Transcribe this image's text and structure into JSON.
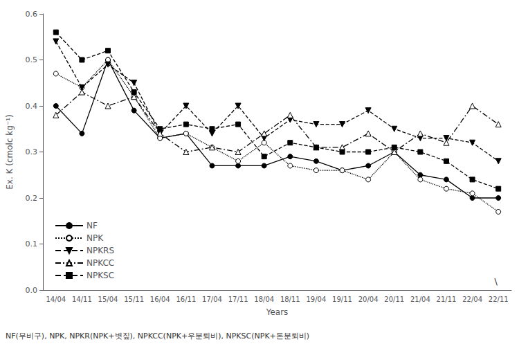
{
  "chart_data": {
    "type": "line",
    "xlabel": "Years",
    "ylabel": "Ex. K (cmolc kg⁻¹)",
    "categories": [
      "14/04",
      "14/11",
      "15/04",
      "15/11",
      "16/04",
      "16/11",
      "17/04",
      "17/11",
      "18/04",
      "18/11",
      "19/04",
      "19/11",
      "20/04",
      "20/11",
      "21/04",
      "21/11",
      "22/04",
      "22/11"
    ],
    "series": [
      {
        "name": "NF",
        "color": "#000000",
        "line_style": "solid",
        "marker": "circle",
        "values": [
          0.4,
          0.34,
          0.5,
          0.39,
          0.33,
          0.34,
          0.27,
          0.27,
          0.27,
          0.29,
          0.28,
          0.26,
          0.27,
          0.3,
          0.25,
          0.24,
          0.2,
          0.2
        ]
      },
      {
        "name": "NPK",
        "color": "#000000",
        "line_style": "dotted",
        "marker": "circle_open",
        "values": [
          0.47,
          0.44,
          0.5,
          0.42,
          0.33,
          0.34,
          0.31,
          0.28,
          0.32,
          0.27,
          0.26,
          0.26,
          0.24,
          0.3,
          0.24,
          0.22,
          0.21,
          0.17
        ]
      },
      {
        "name": "NPKRS",
        "color": "#000000",
        "line_style": "dashed",
        "marker": "triangle_down",
        "values": [
          0.54,
          0.44,
          0.49,
          0.45,
          0.34,
          0.4,
          0.34,
          0.4,
          0.33,
          0.37,
          0.36,
          0.36,
          0.39,
          0.35,
          0.33,
          0.33,
          0.32,
          0.28
        ]
      },
      {
        "name": "NPKCC",
        "color": "#000000",
        "line_style": "dashdot",
        "marker": "triangle_up_open",
        "values": [
          0.38,
          0.43,
          0.4,
          0.42,
          0.34,
          0.3,
          0.31,
          0.3,
          0.34,
          0.38,
          0.31,
          0.31,
          0.34,
          0.3,
          0.34,
          0.32,
          0.4,
          0.36
        ]
      },
      {
        "name": "NPKSC",
        "color": "#000000",
        "line_style": "dashed",
        "marker": "square",
        "values": [
          0.56,
          0.5,
          0.52,
          0.43,
          0.35,
          0.36,
          0.35,
          0.36,
          0.29,
          0.32,
          0.31,
          0.3,
          0.3,
          0.31,
          0.3,
          0.28,
          0.24,
          0.22
        ]
      }
    ],
    "ylim": [
      0.0,
      0.6
    ],
    "yticks": [
      {
        "value": 0.0,
        "label": "0.0"
      },
      0.1,
      0.2,
      0.3,
      0.4,
      0.5,
      0.6
    ],
    "grid": false,
    "legend": "lower left",
    "annotations": [
      "NF(무비구), NPK, NPKR(NPK+볏짚), NPKCC(NPK+우분퇴비), NPKSC(NPK+돈분퇴비)",
      "\\"
    ]
  }
}
